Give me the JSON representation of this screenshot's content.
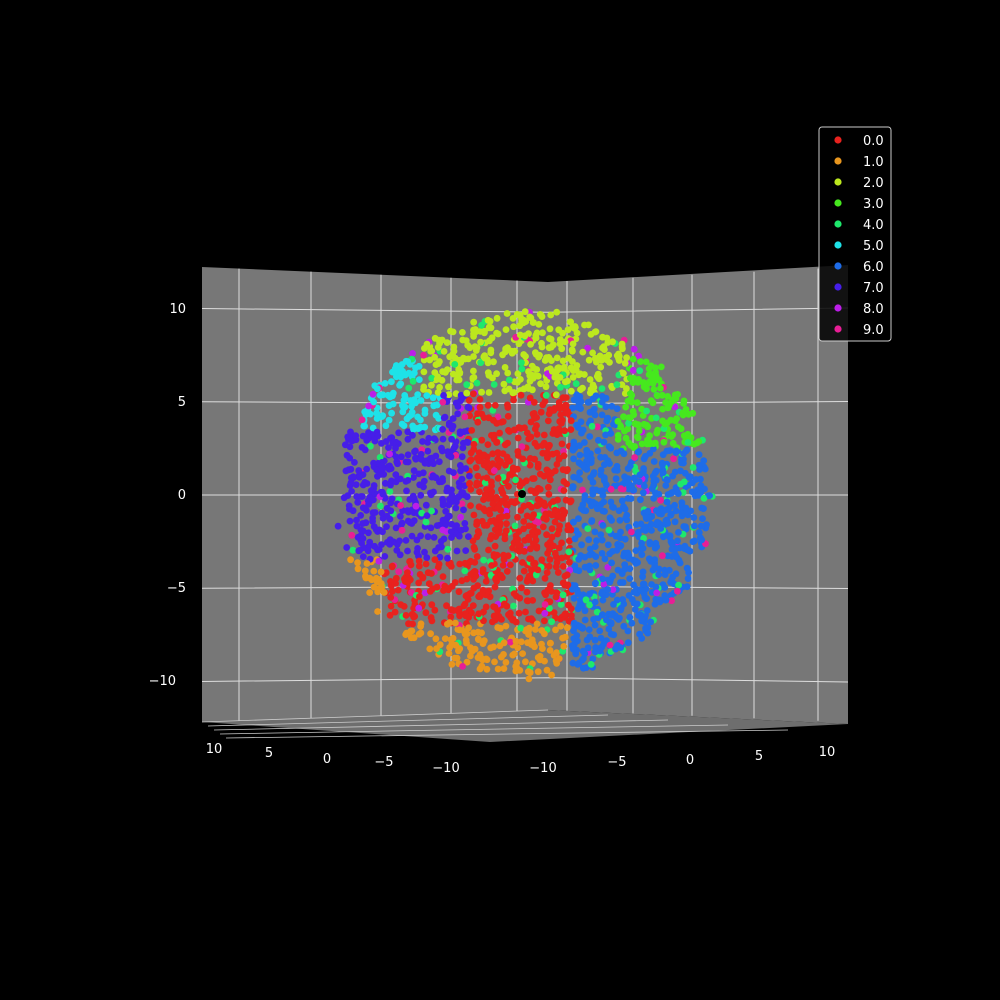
{
  "chart_data": {
    "type": "scatter",
    "projection": "3d",
    "title": "",
    "xlabel": "",
    "ylabel": "",
    "zlabel": "",
    "x_range": [
      -12.5,
      12.5
    ],
    "y_range": [
      -12.5,
      12.5
    ],
    "z_range": [
      -12.5,
      12.5
    ],
    "x_ticks": [
      "−10",
      "−5",
      "0",
      "5",
      "10"
    ],
    "y_ticks": [
      "10",
      "5",
      "0",
      "−5",
      "−10"
    ],
    "z_ticks": [
      "10",
      "5",
      "0",
      "−5",
      "−10"
    ],
    "grid": true,
    "background": "#000000",
    "pane_color": "#777777",
    "legend_position": "top-right",
    "sphere_radius": 10,
    "center_marker": [
      0,
      0,
      0
    ],
    "series": [
      {
        "name": "0.0",
        "color": "#e8221e",
        "region": "lower-front"
      },
      {
        "name": "1.0",
        "color": "#e8961e",
        "region": "outer-rim-left-bottom"
      },
      {
        "name": "2.0",
        "color": "#bce81e",
        "region": "upper-front"
      },
      {
        "name": "3.0",
        "color": "#46e81e",
        "region": "upper-right-rim"
      },
      {
        "name": "4.0",
        "color": "#1ee86c",
        "region": "scattered-center"
      },
      {
        "name": "5.0",
        "color": "#1ee2e8",
        "region": "upper-left-rim"
      },
      {
        "name": "6.0",
        "color": "#1e6ce8",
        "region": "right"
      },
      {
        "name": "7.0",
        "color": "#461ee8",
        "region": "left"
      },
      {
        "name": "8.0",
        "color": "#bc1ee8",
        "region": "top-rim"
      },
      {
        "name": "9.0",
        "color": "#e81e96",
        "region": "scattered-left"
      }
    ]
  }
}
